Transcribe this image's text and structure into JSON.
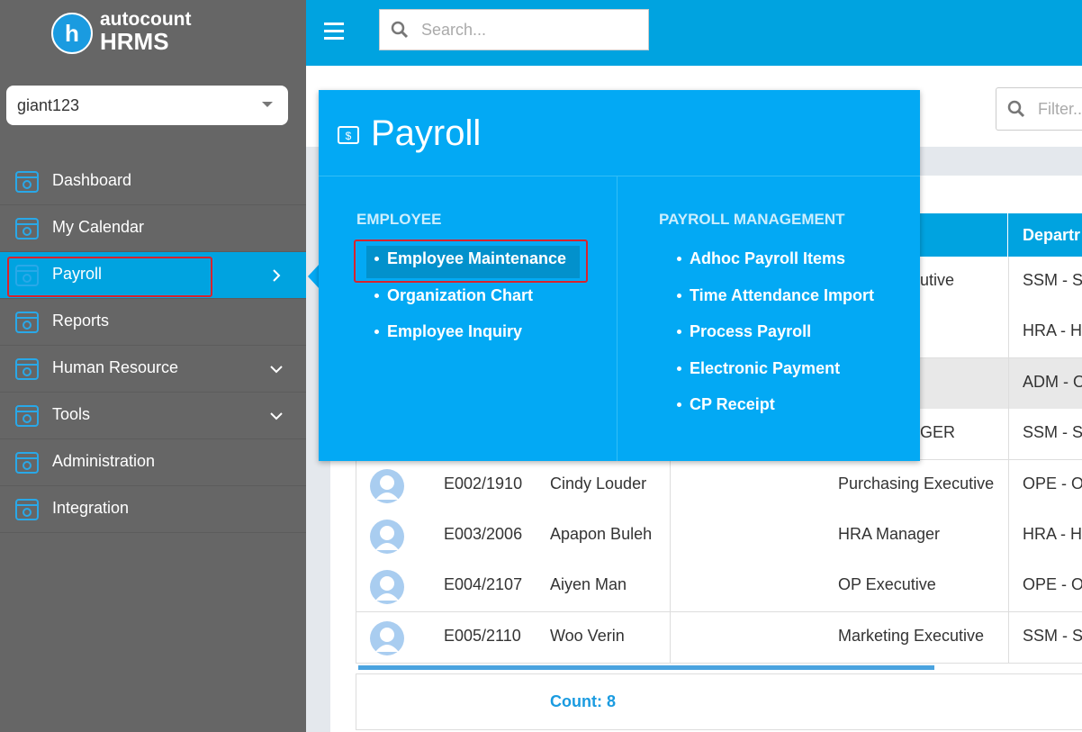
{
  "logo": {
    "brand": "autocount",
    "product": "HRMS"
  },
  "search_placeholder": "Search...",
  "company": "giant123",
  "sidebar": [
    "Dashboard",
    "My Calendar",
    "Payroll",
    "Reports",
    "Human Resource",
    "Tools",
    "Administration",
    "Integration"
  ],
  "filter_placeholder": "Filter...",
  "table": {
    "header_department": "Departr",
    "rows": [
      {
        "job": "utive",
        "department": "SSM - SA"
      },
      {
        "department": "HRA - HU"
      },
      {
        "department": "ADM - O"
      },
      {
        "job": "GER",
        "department": "SSM - SA"
      },
      {
        "code": "E002/1910",
        "name": "Cindy Louder",
        "job": "Purchasing Executive",
        "department": "OPE - OI"
      },
      {
        "code": "E003/2006",
        "name": "Apapon Buleh",
        "job": "HRA Manager",
        "department": "HRA - HU"
      },
      {
        "code": "E004/2107",
        "name": "Aiyen Man",
        "job": "OP Executive",
        "department": "OPE - OI"
      },
      {
        "code": "E005/2110",
        "name": "Woo Verin",
        "job": "Marketing Executive",
        "department": "SSM - SA"
      }
    ],
    "count": "Count: 8"
  },
  "menu": {
    "title": "Payroll",
    "columns": [
      {
        "heading": "EMPLOYEE",
        "items": [
          "Employee Maintenance",
          "Organization Chart",
          "Employee Inquiry"
        ]
      },
      {
        "heading": "PAYROLL MANAGEMENT",
        "items": [
          "Adhoc Payroll Items",
          "Time Attendance Import",
          "Process Payroll",
          "Electronic Payment",
          "CP Receipt"
        ]
      }
    ]
  }
}
